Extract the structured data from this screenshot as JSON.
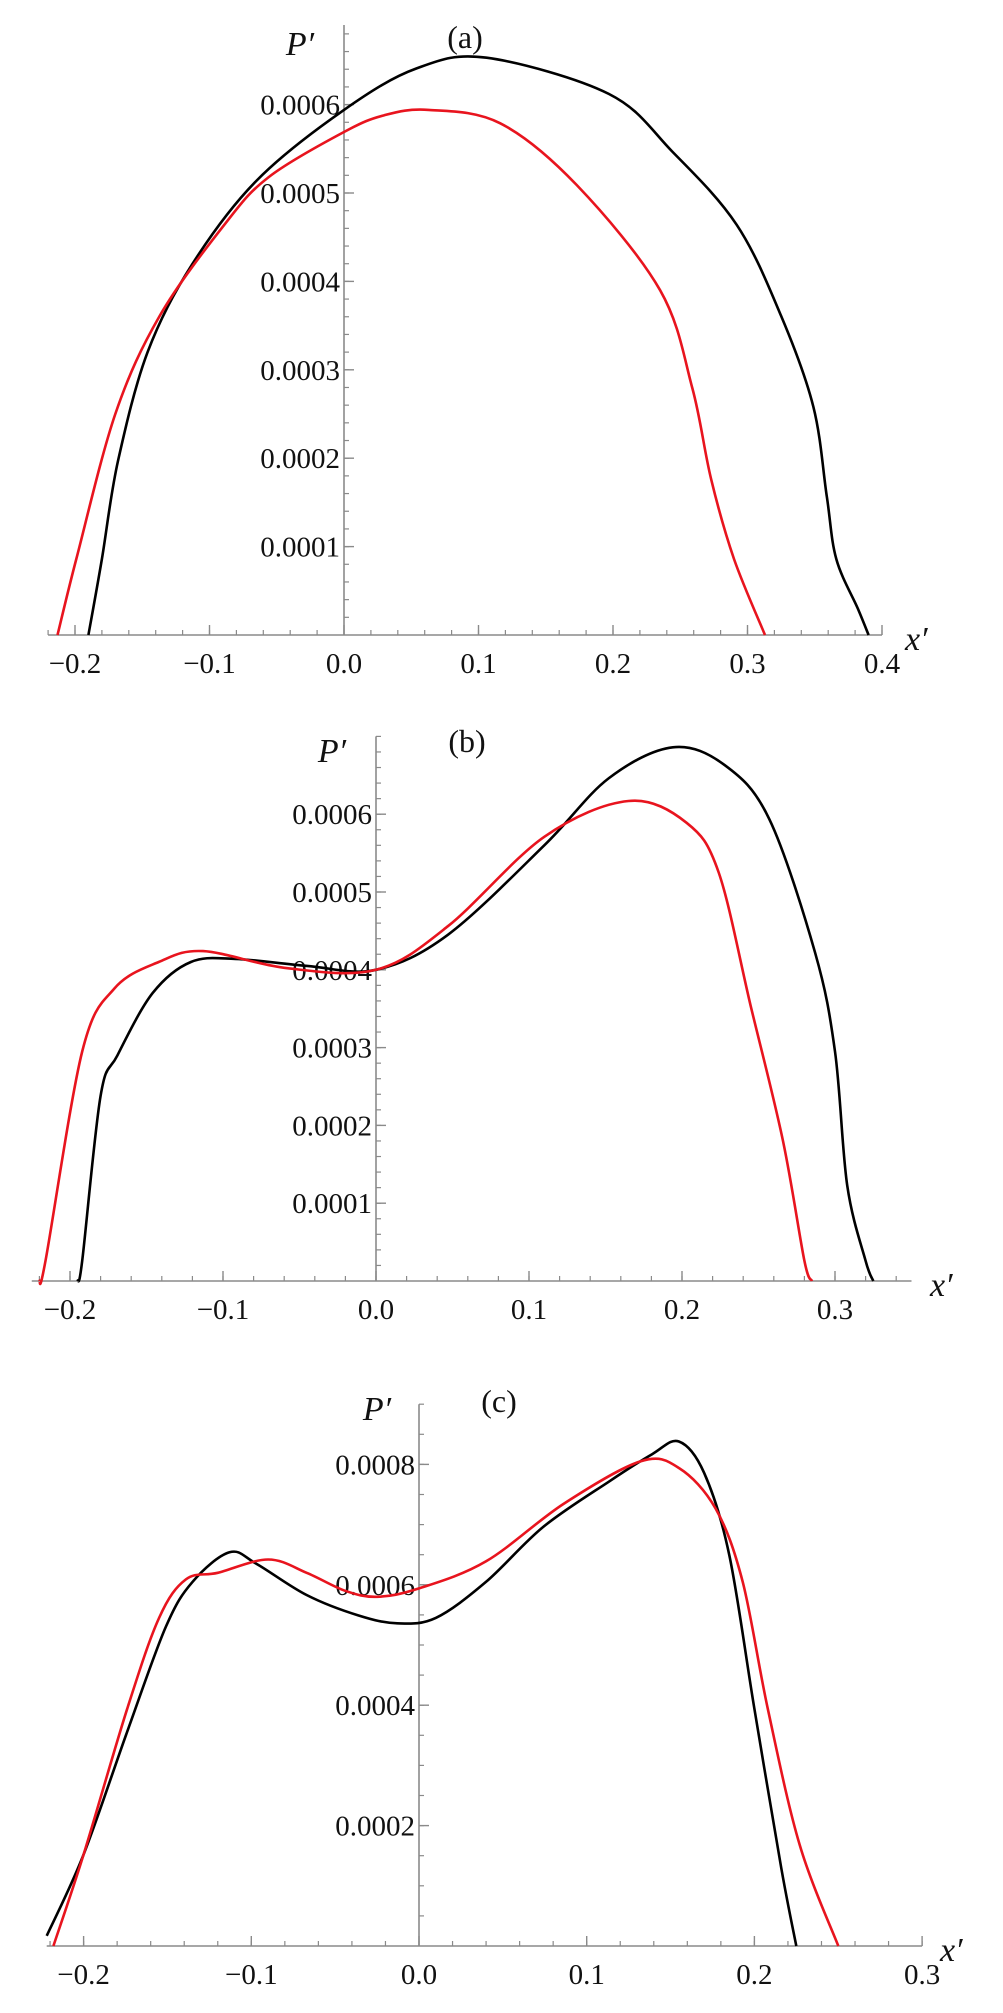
{
  "chart_data": [
    {
      "type": "line",
      "title": "(a)",
      "xlabel": "x′",
      "ylabel": "P′",
      "xlim": [
        -0.22,
        0.4
      ],
      "ylim": [
        0,
        0.00069
      ],
      "grid": false,
      "xticks": [
        -0.2,
        -0.1,
        0.0,
        0.1,
        0.2,
        0.3,
        0.4
      ],
      "xtick_labels": [
        "−0.2",
        "−0.1",
        "0.0",
        "0.1",
        "0.2",
        "0.3",
        "0.4"
      ],
      "yticks": [
        0.0001,
        0.0002,
        0.0003,
        0.0004,
        0.0005,
        0.0006
      ],
      "ytick_labels": [
        "0.0001",
        "0.0002",
        "0.0003",
        "0.0004",
        "0.0005",
        "0.0006"
      ],
      "series": [
        {
          "color": "#000000",
          "x": [
            -0.19,
            -0.18,
            -0.168,
            -0.146,
            -0.113,
            -0.065,
            0.0,
            0.054,
            0.106,
            0.197,
            0.244,
            0.292,
            0.325,
            0.349,
            0.359,
            0.366,
            0.382,
            0.39
          ],
          "y": [
            0,
            8.6e-05,
            0.000197,
            0.00032,
            0.000419,
            0.000514,
            0.000594,
            0.000641,
            0.000653,
            0.000612,
            0.000547,
            0.000464,
            0.000361,
            0.000258,
            0.000156,
            8.6e-05,
            3e-05,
            0
          ]
        },
        {
          "color": "#e8141e",
          "x": [
            -0.213,
            -0.199,
            -0.17,
            -0.137,
            -0.089,
            -0.056,
            0.0,
            0.03,
            0.063,
            0.116,
            0.173,
            0.235,
            0.259,
            0.273,
            0.29,
            0.313
          ],
          "y": [
            0,
            8.6e-05,
            0.00025,
            0.000361,
            0.000464,
            0.000518,
            0.000569,
            0.000588,
            0.000594,
            0.000579,
            0.000509,
            0.00039,
            0.000279,
            0.000176,
            8.6e-05,
            0
          ]
        }
      ]
    },
    {
      "type": "line",
      "title": "(b)",
      "xlabel": "x′",
      "ylabel": "P′",
      "xlim": [
        -0.225,
        0.35
      ],
      "ylim": [
        0,
        0.0007
      ],
      "grid": false,
      "xticks": [
        -0.2,
        -0.1,
        0.0,
        0.1,
        0.2,
        0.3
      ],
      "xtick_labels": [
        "−0.2",
        "−0.1",
        "0.0",
        "0.1",
        "0.2",
        "0.3"
      ],
      "yticks": [
        0.0001,
        0.0002,
        0.0003,
        0.0004,
        0.0005,
        0.0006
      ],
      "ytick_labels": [
        "0.0001",
        "0.0002",
        "0.0003",
        "0.0004",
        "0.0005",
        "0.0006"
      ],
      "series": [
        {
          "color": "#000000",
          "x": [
            -0.195,
            -0.192,
            -0.18,
            -0.169,
            -0.146,
            -0.121,
            -0.092,
            -0.045,
            0.0,
            0.047,
            0.11,
            0.152,
            0.194,
            0.228,
            0.257,
            0.287,
            0.3,
            0.308,
            0.32,
            0.325
          ],
          "y": [
            0,
            2.6e-05,
            0.000238,
            0.00029,
            0.00037,
            0.00041,
            0.000414,
            0.000405,
            0.0004,
            0.000445,
            0.00056,
            0.000646,
            0.000686,
            0.000663,
            0.000594,
            0.000422,
            0.000295,
            0.000123,
            2.6e-05,
            0
          ]
        },
        {
          "color": "#e8141e",
          "x": [
            -0.22,
            -0.216,
            -0.192,
            -0.171,
            -0.142,
            -0.113,
            -0.058,
            0.0,
            0.047,
            0.11,
            0.165,
            0.203,
            0.224,
            0.245,
            0.266,
            0.28,
            0.285
          ],
          "y": [
            0,
            2.6e-05,
            0.000295,
            0.000376,
            0.00041,
            0.000424,
            0.000402,
            0.0004,
            0.000456,
            0.000571,
            0.000617,
            0.000589,
            0.000525,
            0.000353,
            0.00018,
            2.6e-05,
            0
          ]
        }
      ]
    },
    {
      "type": "line",
      "title": "(c)",
      "xlabel": "x′",
      "ylabel": "P′",
      "xlim": [
        -0.222,
        0.3
      ],
      "ylim": [
        0,
        0.0009
      ],
      "grid": false,
      "xticks": [
        -0.2,
        -0.1,
        0.0,
        0.1,
        0.2,
        0.3
      ],
      "xtick_labels": [
        "−0.2",
        "−0.1",
        "0.0",
        "0.1",
        "0.2",
        "0.3"
      ],
      "yticks": [
        0.0002,
        0.0004,
        0.0006,
        0.0008
      ],
      "ytick_labels": [
        "0.0002",
        "0.0004",
        "0.0006",
        "0.0008"
      ],
      "series": [
        {
          "color": "#000000",
          "x": [
            -0.222,
            -0.2,
            -0.174,
            -0.151,
            -0.135,
            -0.113,
            -0.097,
            -0.067,
            -0.036,
            -0.013,
            0.01,
            0.04,
            0.074,
            0.113,
            0.139,
            0.155,
            0.17,
            0.185,
            0.2,
            0.216,
            0.225
          ],
          "y": [
            1.7e-05,
            0.000152,
            0.000356,
            0.00053,
            0.000605,
            0.000654,
            0.000635,
            0.000583,
            0.000549,
            0.000536,
            0.000545,
            0.000605,
            0.000696,
            0.000771,
            0.000817,
            0.000838,
            0.000786,
            0.00065,
            0.000394,
            0.00013,
            0
          ]
        },
        {
          "color": "#e8141e",
          "x": [
            -0.218,
            -0.2,
            -0.174,
            -0.155,
            -0.139,
            -0.12,
            -0.09,
            -0.067,
            -0.044,
            -0.025,
            0.0,
            0.04,
            0.086,
            0.132,
            0.155,
            0.177,
            0.193,
            0.208,
            0.227,
            0.25
          ],
          "y": [
            0,
            0.000152,
            0.000394,
            0.000545,
            0.000609,
            0.00062,
            0.000642,
            0.00062,
            0.00059,
            0.00058,
            0.000594,
            0.000639,
            0.000734,
            0.000805,
            0.000794,
            0.000726,
            0.000605,
            0.000394,
            0.000168,
            0
          ]
        }
      ]
    }
  ]
}
